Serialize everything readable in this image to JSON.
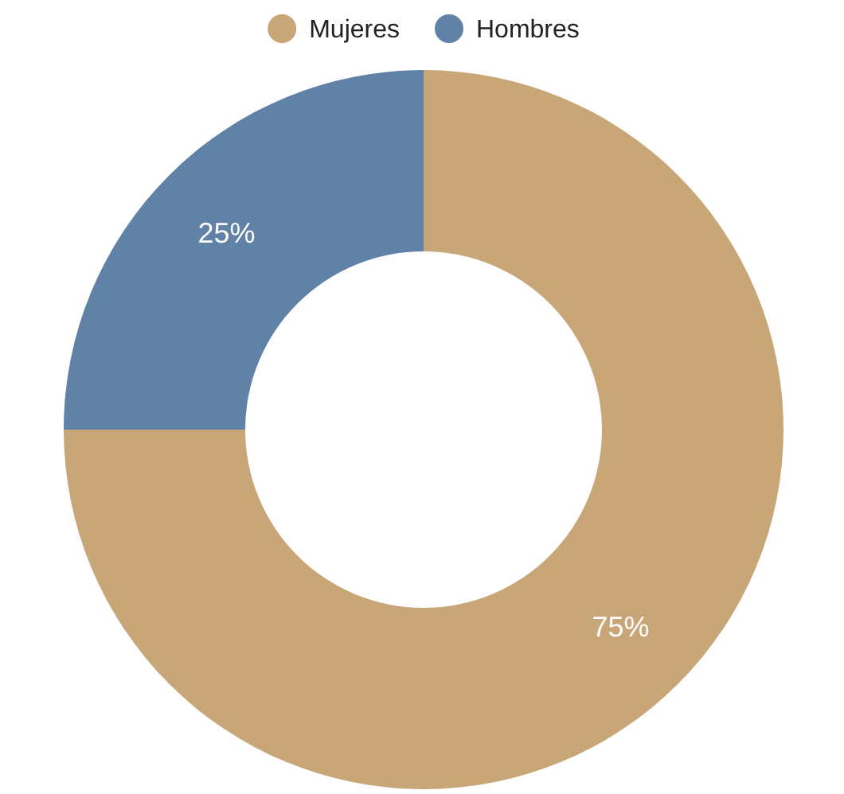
{
  "chart_data": {
    "type": "donut",
    "categories": [
      "Mujeres",
      "Hombres"
    ],
    "values": [
      75,
      25
    ],
    "colors": [
      "#c9a677",
      "#5f82a6"
    ],
    "value_labels": [
      "75%",
      "25%"
    ],
    "legend": "top"
  }
}
